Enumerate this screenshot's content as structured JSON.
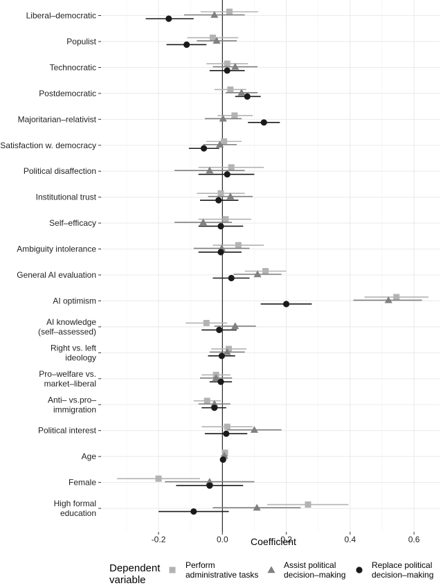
{
  "chart_data": {
    "type": "scatter",
    "subtype": "coefficient-plot",
    "xlabel": "Coefficient",
    "xlim": [
      -0.38,
      0.68
    ],
    "xticks": [
      "-0.2",
      "0.0",
      "0.2",
      "0.4",
      "0.6"
    ],
    "xtick_values": [
      -0.2,
      0.0,
      0.2,
      0.4,
      0.6
    ],
    "grid": true,
    "reference_line": 0,
    "legend": {
      "title": [
        "Dependent",
        "variable"
      ],
      "placement": "bottom",
      "entries": [
        {
          "key": "admin",
          "lines": [
            "Perform",
            "administrative tasks"
          ],
          "marker": "square",
          "color": "#b3b3b3"
        },
        {
          "key": "assist",
          "lines": [
            "Assist political",
            "decision–making"
          ],
          "marker": "triangle",
          "color": "#808080"
        },
        {
          "key": "replace",
          "lines": [
            "Replace political",
            "decision–making"
          ],
          "marker": "circle",
          "color": "#1a1a1a"
        }
      ]
    },
    "categories": [
      [
        "Liberal–democratic"
      ],
      [
        "Populist"
      ],
      [
        "Technocratic"
      ],
      [
        "Postdemocratic"
      ],
      [
        "Majoritarian–relativist"
      ],
      [
        "Satisfaction w. democracy"
      ],
      [
        "Political disaffection"
      ],
      [
        "Institutional trust"
      ],
      [
        "Self–efficacy"
      ],
      [
        "Ambiguity intolerance"
      ],
      [
        "General AI evaluation"
      ],
      [
        "AI optimism"
      ],
      [
        "AI knowledge",
        "(self–assessed)"
      ],
      [
        "Right vs. left",
        "ideology"
      ],
      [
        "Pro–welfare vs.",
        "market–liberal"
      ],
      [
        "Anti– vs.pro–",
        "immigration"
      ],
      [
        "Political interest"
      ],
      [
        "Age"
      ],
      [
        "Female"
      ],
      [
        "High formal",
        "education"
      ]
    ],
    "series": [
      {
        "name": "Perform administrative tasks",
        "key": "admin",
        "values": [
          0.022,
          -0.03,
          0.015,
          0.025,
          0.038,
          0.005,
          0.028,
          -0.005,
          0.01,
          0.05,
          0.135,
          0.545,
          -0.05,
          0.02,
          -0.02,
          -0.048,
          0.015,
          0.008,
          -0.2,
          0.268
        ],
        "ci_low": [
          -0.068,
          -0.11,
          -0.05,
          -0.025,
          -0.015,
          -0.05,
          -0.075,
          -0.08,
          -0.075,
          -0.03,
          0.07,
          0.445,
          -0.115,
          -0.035,
          -0.065,
          -0.09,
          -0.065,
          -0.002,
          -0.33,
          0.14
        ],
        "ci_high": [
          0.112,
          0.05,
          0.08,
          0.075,
          0.095,
          0.06,
          0.13,
          0.07,
          0.09,
          0.13,
          0.2,
          0.645,
          0.015,
          0.075,
          0.025,
          -0.005,
          0.095,
          0.018,
          -0.07,
          0.395
        ]
      },
      {
        "name": "Assist political decision–making",
        "key": "assist",
        "values": [
          -0.025,
          -0.018,
          0.04,
          0.06,
          0.002,
          -0.008,
          -0.04,
          0.025,
          -0.06,
          -0.002,
          0.11,
          0.52,
          0.04,
          0.015,
          -0.02,
          -0.025,
          0.1,
          0.006,
          -0.04,
          0.108
        ],
        "ci_low": [
          -0.12,
          -0.08,
          -0.03,
          0.01,
          -0.055,
          -0.06,
          -0.15,
          -0.045,
          -0.15,
          -0.09,
          0.035,
          0.41,
          -0.025,
          -0.04,
          -0.07,
          -0.075,
          0.015,
          -0.004,
          -0.18,
          -0.03
        ],
        "ci_high": [
          0.07,
          0.045,
          0.11,
          0.11,
          0.06,
          0.045,
          0.07,
          0.095,
          0.03,
          0.085,
          0.185,
          0.625,
          0.105,
          0.07,
          0.03,
          0.025,
          0.185,
          0.016,
          0.1,
          0.245
        ]
      },
      {
        "name": "Replace political decision–making",
        "key": "replace",
        "values": [
          -0.168,
          -0.112,
          0.015,
          0.078,
          0.13,
          -0.058,
          0.015,
          -0.012,
          -0.005,
          -0.005,
          0.028,
          0.2,
          -0.01,
          -0.002,
          -0.005,
          -0.025,
          0.012,
          0.002,
          -0.04,
          -0.09
        ],
        "ci_low": [
          -0.24,
          -0.175,
          -0.04,
          0.04,
          0.08,
          -0.105,
          -0.075,
          -0.07,
          -0.075,
          -0.075,
          -0.03,
          0.12,
          -0.065,
          -0.045,
          -0.04,
          -0.065,
          -0.055,
          -0.004,
          -0.145,
          -0.2
        ],
        "ci_high": [
          -0.09,
          -0.05,
          0.07,
          0.12,
          0.18,
          -0.01,
          0.1,
          0.05,
          0.065,
          0.06,
          0.085,
          0.28,
          0.045,
          0.04,
          0.03,
          0.012,
          0.078,
          0.008,
          0.065,
          0.02
        ]
      }
    ]
  }
}
